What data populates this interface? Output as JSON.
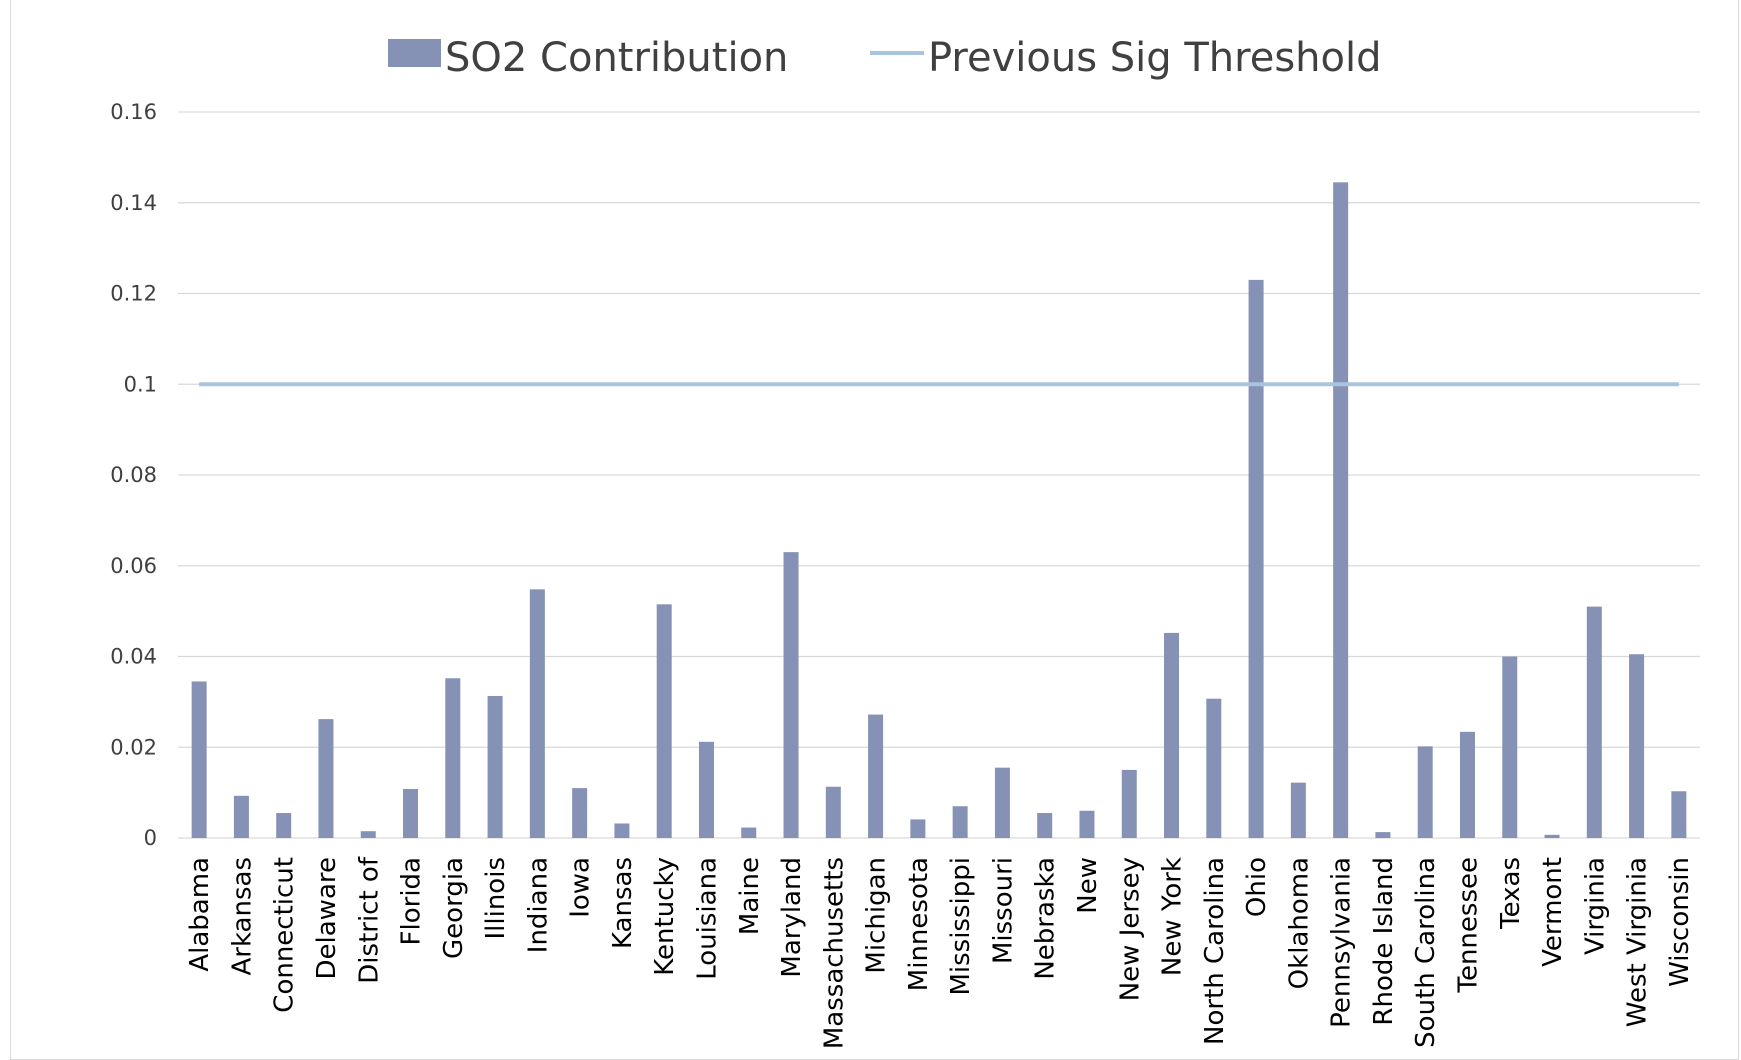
{
  "chart_data": {
    "type": "bar",
    "title": "",
    "xlabel": "",
    "ylabel": "",
    "ylim": [
      0,
      0.16
    ],
    "yticks": [
      "0",
      "0.02",
      "0.04",
      "0.06",
      "0.08",
      "0.1",
      "0.12",
      "0.14",
      "0.16"
    ],
    "grid": true,
    "legend_position": "top",
    "colors": {
      "bar": "#8591b5",
      "threshold": "#a9c4df",
      "grid": "#d9d9d9",
      "text": "#404040"
    },
    "categories": [
      "Alabama",
      "Arkansas",
      "Connecticut",
      "Delaware",
      "District of",
      "Florida",
      "Georgia",
      "Illinois",
      "Indiana",
      "Iowa",
      "Kansas",
      "Kentucky",
      "Louisiana",
      "Maine",
      "Maryland",
      "Massachusetts",
      "Michigan",
      "Minnesota",
      "Mississippi",
      "Missouri",
      "Nebraska",
      "New",
      "New Jersey",
      "New York",
      "North Carolina",
      "Ohio",
      "Oklahoma",
      "Pennsylvania",
      "Rhode Island",
      "South Carolina",
      "Tennessee",
      "Texas",
      "Vermont",
      "Virginia",
      "West Virginia",
      "Wisconsin"
    ],
    "series": [
      {
        "name": "SO2 Contribution",
        "type": "bar",
        "values": [
          0.0345,
          0.0093,
          0.0055,
          0.0262,
          0.0015,
          0.0108,
          0.0352,
          0.0313,
          0.0548,
          0.011,
          0.0032,
          0.0515,
          0.0212,
          0.0023,
          0.063,
          0.0113,
          0.0272,
          0.0041,
          0.007,
          0.0155,
          0.0055,
          0.006,
          0.015,
          0.0452,
          0.0307,
          0.123,
          0.0122,
          0.1445,
          0.0013,
          0.0202,
          0.0234,
          0.04,
          0.0007,
          0.051,
          0.0405,
          0.0103
        ]
      },
      {
        "name": "Previous Sig Threshold",
        "type": "line",
        "value": 0.1
      }
    ]
  }
}
